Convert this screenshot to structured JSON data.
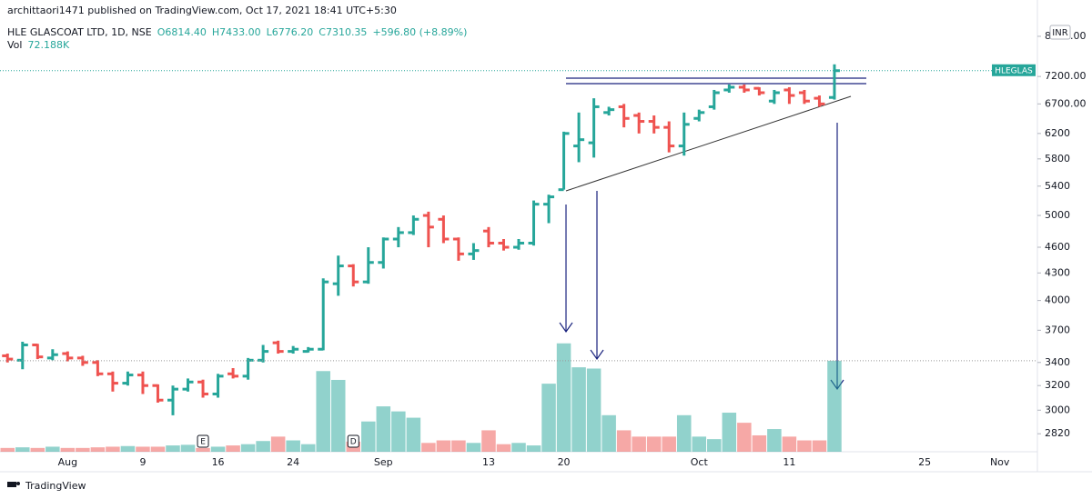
{
  "header": {
    "published": "archittaori1471 published on TradingView.com, Oct 17, 2021 18:41 UTC+5:30",
    "footer": "TradingView"
  },
  "chart_data": {
    "type": "ohlc",
    "symbol": "HLE GLASCOAT LTD, 1D, NSE",
    "legend_fields": [
      "O6814.40",
      "H7433.00",
      "L6776.20",
      "C7310.35",
      "+596.80 (+8.89%)"
    ],
    "volume_name": "Vol",
    "volume_label": "72.188K",
    "price_tag": "HLEGLAS",
    "currency": "INR",
    "up_color": "#26a69a",
    "down_color": "#ef5350",
    "log_scale": true,
    "grid": false,
    "ylim": [
      2690,
      8390
    ],
    "yticks": [
      2820,
      3000,
      3200,
      3400,
      3700,
      4000,
      4300,
      4600,
      5000,
      5400,
      5800,
      6200,
      {
        "value": 6700,
        "label": "6700.00"
      },
      {
        "value": 7200,
        "label": "7200.00"
      },
      {
        "value": 8000,
        "label": "8000.00"
      }
    ],
    "y2lim": [
      0,
      344
    ],
    "categories": [
      null,
      null,
      null,
      null,
      "Aug",
      null,
      null,
      null,
      null,
      "9",
      null,
      null,
      null,
      null,
      "16",
      null,
      null,
      null,
      null,
      "24",
      null,
      null,
      null,
      null,
      null,
      "Sep",
      null,
      null,
      null,
      null,
      null,
      null,
      "13",
      null,
      null,
      null,
      null,
      "20",
      null,
      null,
      null,
      null,
      null,
      null,
      null,
      null,
      "Oct",
      null,
      null,
      null,
      null,
      null,
      "11",
      null,
      null,
      null,
      null,
      null,
      null,
      null,
      null,
      "25",
      null,
      null,
      null,
      null,
      "Nov",
      null,
      null
    ],
    "events": [
      null,
      null,
      null,
      null,
      null,
      null,
      null,
      null,
      null,
      null,
      null,
      null,
      null,
      "E",
      null,
      null,
      null,
      null,
      null,
      null,
      null,
      null,
      null,
      "D",
      null,
      null,
      null,
      null,
      null,
      null,
      null,
      null,
      null,
      null,
      null,
      null,
      null,
      null,
      null,
      null,
      null,
      null,
      null,
      null,
      null,
      null,
      null,
      null,
      null,
      null,
      null,
      null,
      null,
      null,
      null,
      null,
      null,
      null,
      null,
      null,
      null,
      null,
      null,
      null,
      null,
      null,
      null,
      null,
      null
    ],
    "open": [
      3460,
      3420,
      3560,
      3440,
      3480,
      3440,
      3400,
      3300,
      3220,
      3290,
      3200,
      3080,
      3170,
      3230,
      3130,
      3300,
      3280,
      3420,
      3580,
      3500,
      3500,
      3520,
      4180,
      4380,
      4200,
      4420,
      4700,
      4780,
      5000,
      4950,
      4700,
      4520,
      4800,
      4650,
      4600,
      4650,
      5150,
      5350,
      6000,
      6050,
      6550,
      6650,
      6500,
      6400,
      6300,
      6000,
      6450,
      6650,
      6950,
      7000,
      6980,
      6750,
      6950,
      6900,
      6800,
      6814.4,
      null,
      null,
      null,
      null,
      null,
      null,
      null,
      null,
      null,
      null,
      null,
      null,
      null
    ],
    "high": [
      3480,
      3590,
      3570,
      3520,
      3500,
      3460,
      3420,
      3320,
      3320,
      3320,
      3210,
      3200,
      3260,
      3250,
      3300,
      3350,
      3440,
      3560,
      3600,
      3550,
      3540,
      4240,
      4500,
      4400,
      4600,
      4720,
      4850,
      5000,
      5050,
      5000,
      4720,
      4650,
      4850,
      4700,
      4700,
      5200,
      5280,
      6230,
      6550,
      6800,
      6650,
      6700,
      6550,
      6500,
      6400,
      6550,
      6600,
      6950,
      7050,
      7050,
      7000,
      6950,
      7000,
      6950,
      6850,
      7433.0,
      null,
      null,
      null,
      null,
      null,
      null,
      null,
      null,
      null,
      null,
      null,
      null,
      null
    ],
    "low": [
      3400,
      3340,
      3430,
      3420,
      3410,
      3370,
      3280,
      3150,
      3200,
      3130,
      3060,
      2960,
      3150,
      3100,
      3100,
      3260,
      3250,
      3400,
      3480,
      3480,
      3490,
      3510,
      4050,
      4150,
      4180,
      4350,
      4600,
      4750,
      4600,
      4650,
      4440,
      4450,
      4600,
      4560,
      4570,
      4620,
      4900,
      5350,
      5750,
      5820,
      6500,
      6300,
      6200,
      6200,
      5900,
      5850,
      6400,
      6600,
      6900,
      6900,
      6850,
      6700,
      6700,
      6700,
      6650,
      6776.2,
      null,
      null,
      null,
      null,
      null,
      null,
      null,
      null,
      null,
      null,
      null,
      null,
      null
    ],
    "close": [
      3430,
      3560,
      3450,
      3470,
      3440,
      3400,
      3300,
      3220,
      3290,
      3200,
      3080,
      3170,
      3230,
      3130,
      3280,
      3280,
      3420,
      3500,
      3500,
      3520,
      3520,
      4200,
      4380,
      4200,
      4420,
      4700,
      4780,
      4950,
      4850,
      4700,
      4520,
      4560,
      4650,
      4600,
      4650,
      5150,
      5250,
      6200,
      6100,
      6650,
      6600,
      6450,
      6400,
      6300,
      6000,
      6350,
      6550,
      6900,
      7000,
      6950,
      6900,
      6900,
      6850,
      6750,
      6700,
      7310.35,
      null,
      null,
      null,
      null,
      null,
      null,
      null,
      null,
      null,
      null,
      null,
      null,
      null
    ],
    "volume": [
      3,
      3.5,
      3,
      4,
      3,
      3,
      3.5,
      4,
      4.5,
      4,
      4,
      5,
      5.5,
      3,
      4,
      5,
      6,
      8.5,
      12,
      9,
      6,
      64,
      57,
      8,
      24,
      36,
      32,
      27,
      7,
      9,
      9,
      7,
      17,
      6,
      7,
      5,
      54,
      86,
      67,
      66,
      29,
      17,
      12,
      12,
      12,
      29,
      12,
      10,
      31,
      23,
      13,
      18,
      12,
      9,
      9,
      72.188,
      null,
      null,
      null,
      null,
      null,
      null,
      null,
      null,
      null,
      null,
      null,
      null,
      null
    ]
  }
}
